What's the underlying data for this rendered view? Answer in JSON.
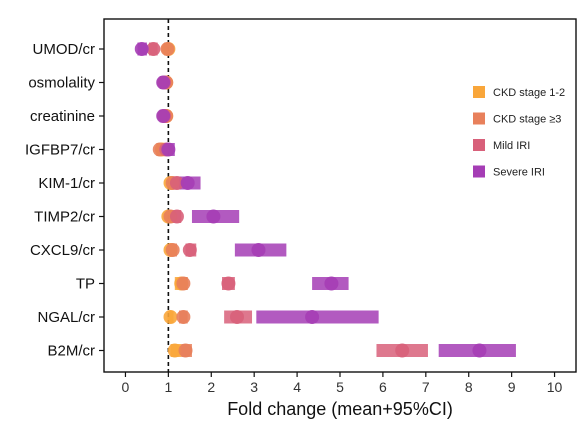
{
  "chart_data": {
    "type": "scatter",
    "xlabel": "Fold change (mean+95%CI)",
    "xlim": [
      -0.5,
      10.5
    ],
    "xticks": [
      "0",
      "1",
      "2",
      "3",
      "4",
      "5",
      "6",
      "7",
      "8",
      "9",
      "10"
    ],
    "reference_line": 1,
    "categories": [
      "UMOD/cr",
      "osmolality",
      "creatinine",
      "IGFBP7/cr",
      "KIM-1/cr",
      "TIMP2/cr",
      "CXCL9/cr",
      "TP",
      "NGAL/cr",
      "B2M/cr"
    ],
    "legend_position": "right",
    "series": [
      {
        "name": "CKD stage 1-2",
        "color": "#F9A63A",
        "points": [
          {
            "category": "UMOD/cr",
            "mean": 1.0,
            "ci": [
              0.95,
              1.05
            ]
          },
          {
            "category": "osmolality",
            "mean": 0.95,
            "ci": [
              0.9,
              1.0
            ]
          },
          {
            "category": "creatinine",
            "mean": 0.95,
            "ci": [
              0.9,
              1.0
            ]
          },
          {
            "category": "IGFBP7/cr",
            "mean": 0.85,
            "ci": [
              0.75,
              0.95
            ]
          },
          {
            "category": "KIM-1/cr",
            "mean": 1.05,
            "ci": [
              1.0,
              1.12
            ]
          },
          {
            "category": "TIMP2/cr",
            "mean": 1.0,
            "ci": [
              0.95,
              1.05
            ]
          },
          {
            "category": "CXCL9/cr",
            "mean": 1.05,
            "ci": [
              1.0,
              1.12
            ]
          },
          {
            "category": "TP",
            "mean": 1.3,
            "ci": [
              1.15,
              1.45
            ]
          },
          {
            "category": "NGAL/cr",
            "mean": 1.05,
            "ci": [
              0.98,
              1.12
            ]
          },
          {
            "category": "B2M/cr",
            "mean": 1.15,
            "ci": [
              1.05,
              1.3
            ]
          }
        ]
      },
      {
        "name": "CKD stage ≥3",
        "color": "#E8805B",
        "points": [
          {
            "category": "UMOD/cr",
            "mean": 0.98,
            "ci": [
              0.9,
              1.05
            ]
          },
          {
            "category": "osmolality",
            "mean": 0.95,
            "ci": [
              0.9,
              1.0
            ]
          },
          {
            "category": "creatinine",
            "mean": 0.95,
            "ci": [
              0.9,
              1.0
            ]
          },
          {
            "category": "IGFBP7/cr",
            "mean": 0.8,
            "ci": [
              0.72,
              0.9
            ]
          },
          {
            "category": "KIM-1/cr",
            "mean": 1.1,
            "ci": [
              1.02,
              1.2
            ]
          },
          {
            "category": "TIMP2/cr",
            "mean": 1.05,
            "ci": [
              0.98,
              1.12
            ]
          },
          {
            "category": "CXCL9/cr",
            "mean": 1.1,
            "ci": [
              1.0,
              1.2
            ]
          },
          {
            "category": "TP",
            "mean": 1.35,
            "ci": [
              1.25,
              1.45
            ]
          },
          {
            "category": "NGAL/cr",
            "mean": 1.35,
            "ci": [
              1.25,
              1.45
            ]
          },
          {
            "category": "B2M/cr",
            "mean": 1.4,
            "ci": [
              1.3,
              1.55
            ]
          }
        ]
      },
      {
        "name": "Mild IRI",
        "color": "#D8607A",
        "points": [
          {
            "category": "UMOD/cr",
            "mean": 0.65,
            "ci": [
              0.55,
              0.75
            ]
          },
          {
            "category": "osmolality",
            "mean": 0.9,
            "ci": [
              0.85,
              0.95
            ]
          },
          {
            "category": "creatinine",
            "mean": 0.9,
            "ci": [
              0.85,
              0.95
            ]
          },
          {
            "category": "IGFBP7/cr",
            "mean": 0.95,
            "ci": [
              0.85,
              1.05
            ]
          },
          {
            "category": "KIM-1/cr",
            "mean": 1.2,
            "ci": [
              1.1,
              1.3
            ]
          },
          {
            "category": "TIMP2/cr",
            "mean": 1.2,
            "ci": [
              1.1,
              1.3
            ]
          },
          {
            "category": "CXCL9/cr",
            "mean": 1.5,
            "ci": [
              1.4,
              1.65
            ]
          },
          {
            "category": "TP",
            "mean": 2.4,
            "ci": [
              2.25,
              2.55
            ]
          },
          {
            "category": "NGAL/cr",
            "mean": 2.6,
            "ci": [
              2.3,
              2.95
            ]
          },
          {
            "category": "B2M/cr",
            "mean": 6.45,
            "ci": [
              5.85,
              7.05
            ]
          }
        ]
      },
      {
        "name": "Severe IRI",
        "color": "#A53DB5",
        "points": [
          {
            "category": "UMOD/cr",
            "mean": 0.38,
            "ci": [
              0.28,
              0.5
            ]
          },
          {
            "category": "osmolality",
            "mean": 0.88,
            "ci": [
              0.8,
              0.95
            ]
          },
          {
            "category": "creatinine",
            "mean": 0.88,
            "ci": [
              0.8,
              0.95
            ]
          },
          {
            "category": "IGFBP7/cr",
            "mean": 1.0,
            "ci": [
              0.9,
              1.15
            ]
          },
          {
            "category": "KIM-1/cr",
            "mean": 1.45,
            "ci": [
              1.25,
              1.75
            ]
          },
          {
            "category": "TIMP2/cr",
            "mean": 2.05,
            "ci": [
              1.55,
              2.65
            ]
          },
          {
            "category": "CXCL9/cr",
            "mean": 3.1,
            "ci": [
              2.55,
              3.75
            ]
          },
          {
            "category": "TP",
            "mean": 4.8,
            "ci": [
              4.35,
              5.2
            ]
          },
          {
            "category": "NGAL/cr",
            "mean": 4.35,
            "ci": [
              3.05,
              5.9
            ]
          },
          {
            "category": "B2M/cr",
            "mean": 8.25,
            "ci": [
              7.3,
              9.1
            ]
          }
        ]
      }
    ]
  }
}
